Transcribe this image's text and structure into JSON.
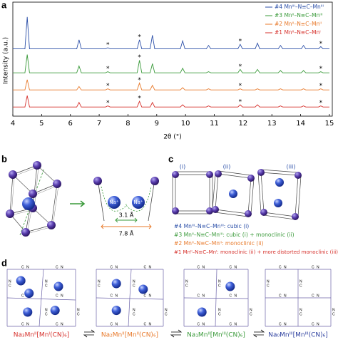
{
  "chart_data": {
    "type": "line",
    "xlabel": "2θ (°)",
    "ylabel": "Intensity (a.u.)",
    "x": [
      4,
      4.42,
      4.5,
      4.58,
      6.22,
      6.3,
      6.38,
      7.22,
      7.3,
      7.38,
      8.32,
      8.4,
      8.48,
      8.77,
      8.85,
      8.93,
      9.82,
      9.9,
      9.98,
      10.72,
      10.8,
      10.88,
      11.82,
      11.9,
      11.98,
      12.42,
      12.5,
      12.58,
      13.22,
      13.3,
      13.38,
      14.02,
      14.1,
      14.18,
      14.62,
      14.7,
      14.78,
      15
    ],
    "series": [
      {
        "name": "#4 Mnᴵᴵᴵ–N≡C–Mnᴵᴵᴵ",
        "color": "#2b4fa8",
        "values": [
          59,
          59,
          87,
          59,
          59,
          67,
          59,
          59,
          60,
          59,
          59,
          67,
          59,
          59,
          71,
          59,
          59,
          66,
          59,
          59,
          62,
          59,
          59,
          63,
          59,
          59,
          64,
          59,
          59,
          62,
          59,
          59,
          62,
          59,
          59,
          61,
          59,
          59
        ]
      },
      {
        "name": "#3 Mnᴵᴵ–N≡C–Mnᴵᴵᴵ",
        "color": "#3a9a3a",
        "values": [
          38,
          38,
          54,
          38,
          38,
          44,
          38,
          38,
          39,
          38,
          38,
          49,
          38,
          38,
          46,
          38,
          38,
          42,
          38,
          38,
          39,
          38,
          38,
          41,
          38,
          38,
          41,
          38,
          38,
          40,
          38,
          38,
          40,
          38,
          38,
          39,
          38,
          38
        ]
      },
      {
        "name": "#2 Mnᴵᴵ–N≡C–Mnᴵᴵ",
        "color": "#e8792a",
        "values": [
          23,
          23,
          32,
          23,
          23,
          26,
          23,
          23,
          24,
          23,
          23,
          29,
          23,
          23,
          27,
          23,
          23,
          25,
          23,
          23,
          24,
          23,
          23,
          24,
          23,
          23,
          24,
          23,
          23,
          24,
          23,
          23,
          24,
          23,
          23,
          24,
          23,
          23
        ]
      },
      {
        "name": "#1 Mnᴵᴵ–N≡C–Mnᴵ",
        "color": "#d6302b",
        "values": [
          8,
          8,
          18,
          8,
          8,
          12,
          8,
          8,
          9,
          8,
          8,
          13,
          8,
          8,
          12,
          8,
          8,
          10,
          8,
          8,
          9,
          8,
          8,
          10,
          8,
          8,
          10,
          8,
          8,
          9,
          8,
          8,
          9,
          8,
          8,
          9,
          8,
          8
        ]
      }
    ],
    "annotation": {
      "text": "*",
      "x": [
        7.3,
        8.4,
        11.9,
        14.7
      ]
    },
    "xlim": [
      4,
      15.1
    ],
    "xticks": [
      4,
      5,
      6,
      7,
      8,
      9,
      10,
      11,
      12,
      13,
      14,
      15
    ],
    "ylim": [
      0,
      100
    ],
    "legend": "upper right"
  },
  "panels": {
    "a": "a",
    "b": "b",
    "c": "c",
    "d": "d"
  },
  "panel_b": {
    "na_left": "Na⁺",
    "na_right": "Na⁺",
    "inner_distance": "3.1 Å",
    "outer_distance": "7.8 Å"
  },
  "panel_c": {
    "structures": [
      "(i)",
      "(ii)",
      "(iii)"
    ],
    "lines": [
      "#4 Mnᴵᴵᴵ–N≡C–Mnᴵᴵᴵ: cubic (i)",
      "#3 Mnᴵᴵ–N≡C–Mnᴵᴵᴵ: cubic (i) + monoclinic (ii)",
      "#2 Mnᴵᴵ–N≡C–Mnᴵᴵ: monoclinic (ii)",
      "#1 Mnᴵᴵ–N≡C–Mnᴵ: monoclinic (ii) + more distorted monoclinic (iii)"
    ]
  },
  "panel_d": {
    "formulas": [
      "Na₃Mnᴵᴵ[Mnᴵ(CN)₆]",
      "Na₂Mnᴵᴵ[Mnᴵᴵ(CN)₆]",
      "Na₁Mnᴵᴵ[Mnᴵᴵᴵ(CN)₆]",
      "Na₀Mnᴵᴵᴵ[Mnᴵᴵᴵ(CN)₆]"
    ],
    "atom_labels": {
      "c": "C",
      "n": "N"
    }
  }
}
